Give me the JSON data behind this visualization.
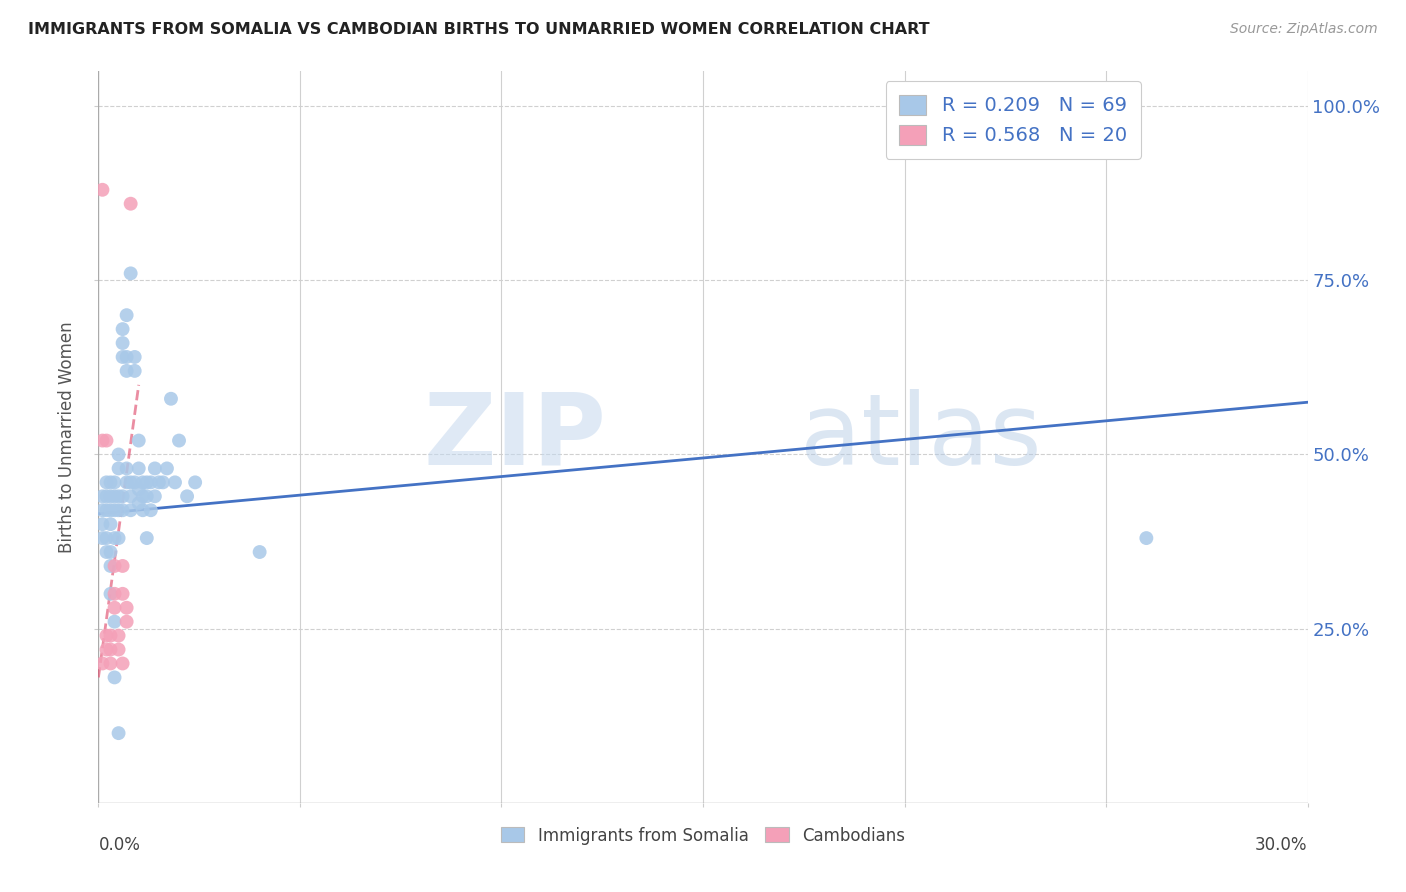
{
  "title": "IMMIGRANTS FROM SOMALIA VS CAMBODIAN BIRTHS TO UNMARRIED WOMEN CORRELATION CHART",
  "source": "Source: ZipAtlas.com",
  "ylabel": "Births to Unmarried Women",
  "yaxis_labels": [
    "25.0%",
    "50.0%",
    "75.0%",
    "100.0%"
  ],
  "yaxis_values": [
    0.25,
    0.5,
    0.75,
    1.0
  ],
  "xlim": [
    0.0,
    0.3
  ],
  "ylim": [
    0.0,
    1.05
  ],
  "legend_r1": "R = 0.209",
  "legend_n1": "N = 69",
  "legend_r2": "R = 0.568",
  "legend_n2": "N = 20",
  "color_somalia": "#a8c8e8",
  "color_cambodian": "#f4a0b8",
  "color_line_somalia": "#4472c4",
  "color_line_cambodian": "#e05070",
  "watermark_zip": "ZIP",
  "watermark_atlas": "atlas",
  "scatter_somalia_x": [
    0.001,
    0.001,
    0.001,
    0.002,
    0.002,
    0.002,
    0.002,
    0.003,
    0.003,
    0.003,
    0.003,
    0.003,
    0.004,
    0.004,
    0.004,
    0.004,
    0.005,
    0.005,
    0.005,
    0.005,
    0.005,
    0.006,
    0.006,
    0.006,
    0.006,
    0.007,
    0.007,
    0.007,
    0.007,
    0.008,
    0.008,
    0.008,
    0.009,
    0.009,
    0.009,
    0.01,
    0.01,
    0.01,
    0.011,
    0.011,
    0.011,
    0.012,
    0.012,
    0.013,
    0.013,
    0.014,
    0.014,
    0.015,
    0.016,
    0.017,
    0.018,
    0.019,
    0.02,
    0.022,
    0.024,
    0.04,
    0.001,
    0.002,
    0.003,
    0.004,
    0.005,
    0.006,
    0.007,
    0.008,
    0.01,
    0.012,
    0.004,
    0.003,
    0.26
  ],
  "scatter_somalia_y": [
    0.42,
    0.44,
    0.4,
    0.44,
    0.42,
    0.46,
    0.38,
    0.44,
    0.42,
    0.46,
    0.4,
    0.36,
    0.44,
    0.42,
    0.46,
    0.38,
    0.48,
    0.5,
    0.44,
    0.42,
    0.38,
    0.64,
    0.66,
    0.44,
    0.42,
    0.64,
    0.62,
    0.48,
    0.46,
    0.46,
    0.44,
    0.42,
    0.64,
    0.62,
    0.46,
    0.45,
    0.43,
    0.48,
    0.46,
    0.44,
    0.42,
    0.44,
    0.38,
    0.46,
    0.42,
    0.48,
    0.44,
    0.46,
    0.46,
    0.48,
    0.58,
    0.46,
    0.52,
    0.44,
    0.46,
    0.36,
    0.38,
    0.36,
    0.34,
    0.18,
    0.1,
    0.68,
    0.7,
    0.76,
    0.52,
    0.46,
    0.26,
    0.3,
    0.38
  ],
  "scatter_cambodian_x": [
    0.001,
    0.001,
    0.002,
    0.002,
    0.003,
    0.003,
    0.003,
    0.004,
    0.004,
    0.004,
    0.005,
    0.005,
    0.006,
    0.006,
    0.006,
    0.007,
    0.007,
    0.008,
    0.001,
    0.002
  ],
  "scatter_cambodian_y": [
    0.52,
    0.2,
    0.22,
    0.24,
    0.22,
    0.24,
    0.2,
    0.34,
    0.3,
    0.28,
    0.24,
    0.22,
    0.2,
    0.34,
    0.3,
    0.28,
    0.26,
    0.86,
    0.88,
    0.52
  ],
  "somalia_line_x": [
    0.0,
    0.3
  ],
  "somalia_line_y": [
    0.415,
    0.575
  ],
  "cambodian_line_x": [
    0.0,
    0.01
  ],
  "cambodian_line_y": [
    0.18,
    0.6
  ]
}
